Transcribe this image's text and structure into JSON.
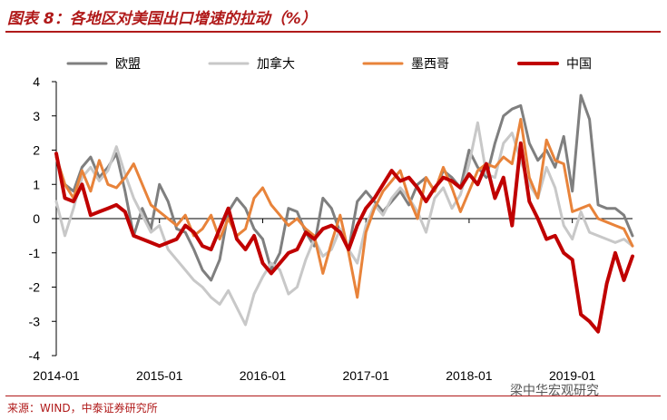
{
  "figure": {
    "title": "图表 8：各地区对美国出口增速的拉动（%）",
    "source": "来源：WIND，中泰证券研究所",
    "watermark": "梁中华宏观研究"
  },
  "chart_data": {
    "type": "line",
    "ylim": [
      -4,
      4
    ],
    "yticks": [
      4,
      3,
      2,
      1,
      0,
      -1,
      -2,
      -3,
      -4
    ],
    "xlim": [
      0,
      67
    ],
    "xticks": [
      {
        "label": "2014-01",
        "index": 0
      },
      {
        "label": "2015-01",
        "index": 12
      },
      {
        "label": "2016-01",
        "index": 24
      },
      {
        "label": "2017-01",
        "index": 36
      },
      {
        "label": "2018-01",
        "index": 48
      },
      {
        "label": "2019-01",
        "index": 60
      }
    ],
    "legend_position": "top",
    "grid": false,
    "series": [
      {
        "name": "欧盟",
        "color": "#7f7f7f",
        "width": 3,
        "values": [
          1.8,
          1.0,
          0.8,
          1.5,
          1.8,
          1.2,
          1.5,
          1.9,
          0.8,
          -0.5,
          0.3,
          -0.3,
          1.0,
          0.5,
          -0.3,
          -0.4,
          -0.9,
          -1.5,
          -1.8,
          -1.2,
          0.2,
          0.6,
          0.3,
          -0.3,
          -0.6,
          -1.5,
          -1.0,
          0.3,
          0.2,
          -0.4,
          -0.8,
          0.6,
          0.3,
          -0.4,
          -0.9,
          0.5,
          0.8,
          0.5,
          0.2,
          0.5,
          0.8,
          0.4,
          1.0,
          1.2,
          0.8,
          1.4,
          1.2,
          0.9,
          2.0,
          1.5,
          1.2,
          2.2,
          3.0,
          3.2,
          3.3,
          2.2,
          1.7,
          2.0,
          1.5,
          2.4,
          0.8,
          3.6,
          2.9,
          0.4,
          0.3,
          0.3,
          0.1,
          -0.5
        ]
      },
      {
        "name": "加拿大",
        "color": "#c8c8c8",
        "width": 3,
        "values": [
          0.5,
          -0.5,
          0.3,
          1.2,
          1.5,
          1.1,
          1.4,
          2.1,
          1.3,
          0.6,
          0.1,
          -0.4,
          -0.2,
          -0.9,
          -1.2,
          -1.5,
          -1.8,
          -2.0,
          -2.3,
          -2.5,
          -2.1,
          -2.6,
          -3.1,
          -2.2,
          -1.7,
          -1.3,
          -1.5,
          -2.2,
          -2.0,
          -1.2,
          -0.6,
          -1.1,
          -0.9,
          -0.3,
          -0.9,
          -1.3,
          -0.2,
          0.4,
          0.1,
          0.6,
          0.9,
          0.6,
          0.2,
          -0.4,
          0.6,
          0.9,
          0.3,
          0.7,
          1.6,
          2.8,
          1.3,
          1.2,
          2.2,
          2.5,
          1.7,
          1.0,
          0.6,
          1.5,
          0.9,
          -0.2,
          -0.6,
          0.2,
          -0.4,
          -0.5,
          -0.6,
          -0.7,
          -0.6,
          -0.8
        ]
      },
      {
        "name": "墨西哥",
        "color": "#e8833a",
        "width": 3,
        "values": [
          1.8,
          1.0,
          0.6,
          1.4,
          0.8,
          1.7,
          1.0,
          0.9,
          1.2,
          1.6,
          1.0,
          0.4,
          0.2,
          0.0,
          -0.2,
          0.1,
          -0.5,
          -0.3,
          0.1,
          -0.6,
          0.0,
          -0.5,
          -0.3,
          0.6,
          0.9,
          0.4,
          0.1,
          -0.2,
          0.0,
          -0.3,
          -0.5,
          -1.6,
          -0.7,
          0.1,
          -1.0,
          -2.3,
          -0.4,
          0.3,
          0.8,
          1.1,
          1.4,
          0.6,
          0.0,
          1.2,
          0.8,
          1.5,
          0.9,
          0.2,
          0.8,
          1.4,
          1.6,
          1.5,
          1.8,
          1.6,
          2.9,
          1.2,
          0.6,
          2.3,
          1.7,
          1.6,
          0.2,
          0.3,
          0.4,
          0.0,
          -0.1,
          -0.2,
          -0.3,
          -0.8
        ]
      },
      {
        "name": "中国",
        "color": "#c00000",
        "width": 4,
        "values": [
          1.9,
          0.6,
          0.5,
          1.0,
          0.1,
          0.2,
          0.3,
          0.4,
          0.2,
          -0.5,
          -0.6,
          -0.7,
          -0.8,
          -0.7,
          -0.6,
          -0.2,
          -0.4,
          -0.8,
          -0.9,
          -0.3,
          0.3,
          -0.6,
          -0.9,
          -0.5,
          -1.3,
          -1.6,
          -1.3,
          -1.0,
          -0.9,
          -0.4,
          -0.6,
          -0.3,
          -0.2,
          -0.4,
          -0.9,
          -0.2,
          0.3,
          0.6,
          1.0,
          1.4,
          1.1,
          1.2,
          0.9,
          0.5,
          0.9,
          1.2,
          1.1,
          0.9,
          1.3,
          1.0,
          1.6,
          0.6,
          1.2,
          -0.2,
          2.2,
          0.5,
          0.0,
          -0.6,
          -0.5,
          -1.0,
          -1.2,
          -2.8,
          -3.0,
          -3.3,
          -1.9,
          -1.0,
          -1.8,
          -1.1
        ]
      }
    ]
  }
}
